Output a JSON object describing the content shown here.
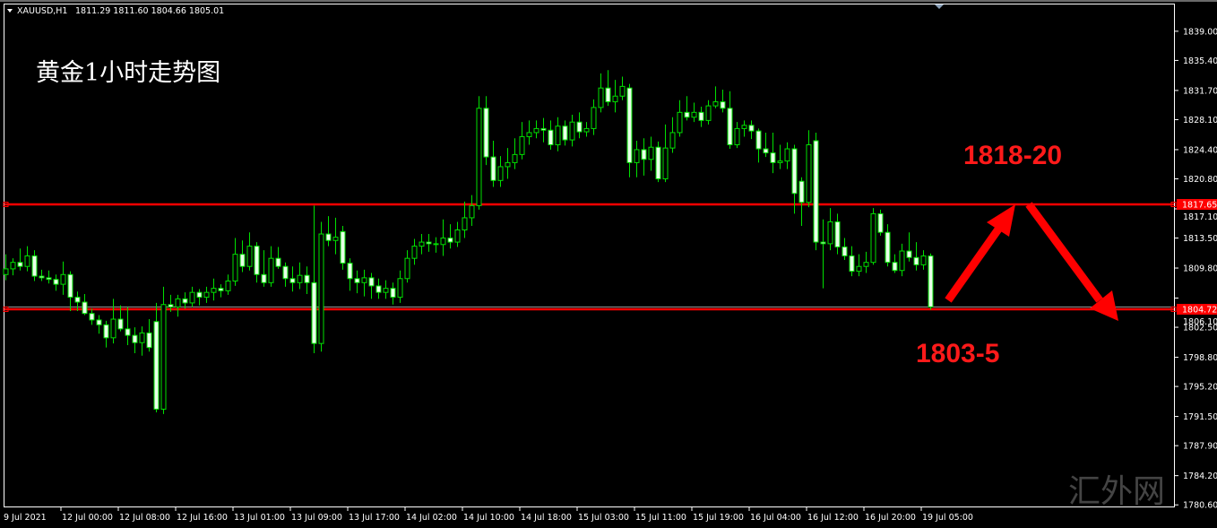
{
  "header": {
    "symbol": "XAUUSD,H1",
    "ohlc_readout": "1811.29 1811.60 1804.66 1805.01"
  },
  "overlay_title": "黄金1小时走势图",
  "watermark": "汇外网",
  "annotations": {
    "resistance_text": "1818-20",
    "support_text": "1803-5"
  },
  "colors": {
    "background": "#000000",
    "candle_outline": "#00e000",
    "bear_fill": "#e8ffe8",
    "level_line": "#ff0000",
    "arrow": "#ff0000"
  },
  "chart_data": {
    "type": "candlestick",
    "title": "",
    "ylim": [
      1780.4,
      1842.3
    ],
    "y_ticks": [
      "1839.00",
      "1835.40",
      "1831.70",
      "1828.10",
      "1824.40",
      "1820.80",
      "1817.10",
      "1813.50",
      "1809.80",
      "1806.10",
      "1802.50",
      "1798.80",
      "1795.20",
      "1791.50",
      "1787.90",
      "1784.20",
      "1780.60"
    ],
    "x_ticks": [
      "9 Jul 2021",
      "12 Jul 00:00",
      "12 Jul 08:00",
      "12 Jul 16:00",
      "13 Jul 01:00",
      "13 Jul 09:00",
      "13 Jul 17:00",
      "14 Jul 02:00",
      "14 Jul 10:00",
      "14 Jul 18:00",
      "15 Jul 03:00",
      "15 Jul 11:00",
      "15 Jul 19:00",
      "16 Jul 04:00",
      "16 Jul 12:00",
      "16 Jul 20:00",
      "19 Jul 05:00"
    ],
    "horizontal_levels": [
      {
        "price": 1817.65,
        "label": "1817.65"
      },
      {
        "price": 1804.72,
        "label": "1804.72"
      }
    ],
    "bid_line": 1805.01,
    "ohlc": [
      [
        1809.0,
        1811.5,
        1808.3,
        1809.7
      ],
      [
        1809.7,
        1811.0,
        1808.9,
        1810.5
      ],
      [
        1810.5,
        1812.2,
        1809.5,
        1810.0
      ],
      [
        1810.0,
        1812.5,
        1809.4,
        1811.3
      ],
      [
        1811.3,
        1812.0,
        1808.2,
        1808.8
      ],
      [
        1808.8,
        1809.6,
        1808.2,
        1808.6
      ],
      [
        1808.6,
        1809.5,
        1807.9,
        1808.4
      ],
      [
        1808.4,
        1809.0,
        1807.0,
        1807.8
      ],
      [
        1807.8,
        1810.6,
        1806.5,
        1809.0
      ],
      [
        1809.0,
        1809.4,
        1804.5,
        1806.2
      ],
      [
        1806.2,
        1806.9,
        1804.5,
        1805.6
      ],
      [
        1805.6,
        1806.6,
        1804.0,
        1804.2
      ],
      [
        1804.2,
        1804.8,
        1802.8,
        1803.4
      ],
      [
        1803.4,
        1804.0,
        1801.7,
        1802.8
      ],
      [
        1802.8,
        1803.3,
        1800.0,
        1801.2
      ],
      [
        1801.2,
        1806.0,
        1800.5,
        1803.5
      ],
      [
        1803.5,
        1805.2,
        1802.0,
        1802.3
      ],
      [
        1802.3,
        1805.0,
        1800.3,
        1801.5
      ],
      [
        1801.5,
        1802.5,
        1799.3,
        1800.6
      ],
      [
        1800.6,
        1802.6,
        1799.0,
        1801.8
      ],
      [
        1801.8,
        1803.5,
        1799.5,
        1800.0
      ],
      [
        1803.2,
        1805.5,
        1792.0,
        1792.4
      ],
      [
        1792.4,
        1807.5,
        1791.8,
        1805.3
      ],
      [
        1805.3,
        1806.5,
        1804.4,
        1805.0
      ],
      [
        1805.0,
        1806.5,
        1803.8,
        1806.0
      ],
      [
        1806.0,
        1806.8,
        1804.8,
        1805.5
      ],
      [
        1805.5,
        1807.5,
        1805.0,
        1806.8
      ],
      [
        1806.8,
        1807.2,
        1805.2,
        1806.2
      ],
      [
        1806.2,
        1807.5,
        1805.5,
        1806.8
      ],
      [
        1806.8,
        1808.5,
        1805.8,
        1807.3
      ],
      [
        1807.3,
        1807.8,
        1806.2,
        1807.0
      ],
      [
        1807.0,
        1809.0,
        1806.5,
        1808.2
      ],
      [
        1808.2,
        1813.5,
        1807.6,
        1811.5
      ],
      [
        1811.5,
        1813.2,
        1809.3,
        1810.0
      ],
      [
        1810.0,
        1814.2,
        1809.5,
        1812.5
      ],
      [
        1812.5,
        1813.0,
        1808.0,
        1809.0
      ],
      [
        1809.0,
        1812.0,
        1807.5,
        1808.0
      ],
      [
        1808.0,
        1812.5,
        1807.5,
        1811.0
      ],
      [
        1811.0,
        1812.4,
        1809.7,
        1810.0
      ],
      [
        1810.0,
        1810.5,
        1807.5,
        1808.5
      ],
      [
        1808.5,
        1810.0,
        1806.9,
        1808.0
      ],
      [
        1808.0,
        1810.5,
        1807.2,
        1808.9
      ],
      [
        1808.9,
        1810.0,
        1806.6,
        1808.0
      ],
      [
        1808.0,
        1817.5,
        1799.3,
        1800.5
      ],
      [
        1800.5,
        1815.5,
        1799.5,
        1814.0
      ],
      [
        1814.0,
        1816.2,
        1812.5,
        1813.2
      ],
      [
        1813.2,
        1816.0,
        1811.5,
        1813.6
      ],
      [
        1814.3,
        1815.0,
        1809.6,
        1810.4
      ],
      [
        1810.4,
        1811.0,
        1807.0,
        1808.5
      ],
      [
        1808.5,
        1809.5,
        1806.7,
        1808.0
      ],
      [
        1808.0,
        1809.6,
        1806.3,
        1808.6
      ],
      [
        1808.6,
        1809.2,
        1806.0,
        1807.6
      ],
      [
        1807.6,
        1808.5,
        1806.0,
        1806.8
      ],
      [
        1806.8,
        1808.3,
        1806.0,
        1807.3
      ],
      [
        1807.3,
        1808.0,
        1805.3,
        1806.2
      ],
      [
        1806.2,
        1809.5,
        1805.5,
        1808.5
      ],
      [
        1808.5,
        1812.0,
        1808.0,
        1811.0
      ],
      [
        1811.0,
        1813.4,
        1810.2,
        1812.5
      ],
      [
        1812.5,
        1814.0,
        1811.5,
        1813.0
      ],
      [
        1813.0,
        1814.0,
        1811.8,
        1812.8
      ],
      [
        1812.8,
        1813.6,
        1811.7,
        1812.7
      ],
      [
        1812.7,
        1815.8,
        1811.3,
        1813.5
      ],
      [
        1813.5,
        1815.2,
        1812.2,
        1813.0
      ],
      [
        1813.0,
        1815.5,
        1812.4,
        1814.5
      ],
      [
        1814.5,
        1818.0,
        1813.5,
        1816.0
      ],
      [
        1816.0,
        1818.8,
        1815.0,
        1817.5
      ],
      [
        1817.5,
        1831.0,
        1817.0,
        1829.5
      ],
      [
        1829.5,
        1831.0,
        1822.5,
        1823.5
      ],
      [
        1823.5,
        1825.5,
        1819.8,
        1820.6
      ],
      [
        1820.6,
        1823.6,
        1819.8,
        1822.3
      ],
      [
        1822.3,
        1824.6,
        1820.8,
        1822.8
      ],
      [
        1822.8,
        1825.8,
        1822.0,
        1823.8
      ],
      [
        1823.8,
        1827.8,
        1823.2,
        1826.0
      ],
      [
        1826.0,
        1828.0,
        1825.0,
        1826.5
      ],
      [
        1826.5,
        1828.0,
        1825.8,
        1827.0
      ],
      [
        1827.0,
        1828.3,
        1825.3,
        1826.8
      ],
      [
        1826.8,
        1828.0,
        1824.4,
        1825.0
      ],
      [
        1825.0,
        1828.4,
        1824.2,
        1827.3
      ],
      [
        1827.3,
        1828.0,
        1824.9,
        1825.6
      ],
      [
        1825.6,
        1828.7,
        1824.8,
        1827.8
      ],
      [
        1827.8,
        1829.0,
        1825.8,
        1826.6
      ],
      [
        1826.6,
        1827.8,
        1826.0,
        1827.0
      ],
      [
        1827.0,
        1830.6,
        1826.2,
        1829.6
      ],
      [
        1829.6,
        1833.8,
        1829.0,
        1832.0
      ],
      [
        1832.0,
        1834.2,
        1829.8,
        1830.3
      ],
      [
        1830.3,
        1833.0,
        1829.0,
        1831.0
      ],
      [
        1831.0,
        1833.4,
        1830.5,
        1832.2
      ],
      [
        1832.0,
        1832.5,
        1821.0,
        1822.8
      ],
      [
        1822.8,
        1825.5,
        1821.0,
        1824.4
      ],
      [
        1824.4,
        1825.8,
        1821.2,
        1823.2
      ],
      [
        1823.2,
        1826.0,
        1821.8,
        1824.7
      ],
      [
        1824.7,
        1825.4,
        1820.4,
        1820.8
      ],
      [
        1820.8,
        1827.5,
        1820.4,
        1824.6
      ],
      [
        1824.6,
        1828.4,
        1824.0,
        1826.5
      ],
      [
        1826.5,
        1830.5,
        1826.0,
        1829.0
      ],
      [
        1829.0,
        1831.0,
        1828.0,
        1828.4
      ],
      [
        1828.4,
        1830.2,
        1827.8,
        1829.0
      ],
      [
        1829.0,
        1829.7,
        1827.2,
        1828.0
      ],
      [
        1828.0,
        1830.5,
        1827.5,
        1829.8
      ],
      [
        1829.8,
        1832.2,
        1829.5,
        1830.3
      ],
      [
        1830.3,
        1831.8,
        1829.0,
        1829.5
      ],
      [
        1829.5,
        1831.6,
        1824.5,
        1825.0
      ],
      [
        1825.0,
        1827.8,
        1824.6,
        1827.0
      ],
      [
        1827.0,
        1828.0,
        1826.0,
        1827.4
      ],
      [
        1827.4,
        1828.0,
        1825.7,
        1826.7
      ],
      [
        1826.7,
        1827.0,
        1822.8,
        1824.5
      ],
      [
        1824.5,
        1826.5,
        1823.5,
        1824.0
      ],
      [
        1824.0,
        1826.5,
        1821.5,
        1822.8
      ],
      [
        1822.8,
        1825.0,
        1822.0,
        1823.0
      ],
      [
        1823.0,
        1825.3,
        1822.0,
        1824.5
      ],
      [
        1824.5,
        1825.0,
        1816.5,
        1819.0
      ],
      [
        1820.5,
        1821.0,
        1815.0,
        1817.9
      ],
      [
        1817.9,
        1826.8,
        1817.3,
        1825.0
      ],
      [
        1825.5,
        1826.5,
        1812.0,
        1813.0
      ],
      [
        1813.0,
        1815.8,
        1807.3,
        1812.8
      ],
      [
        1812.8,
        1817.2,
        1812.0,
        1815.5
      ],
      [
        1815.5,
        1816.5,
        1811.5,
        1812.4
      ],
      [
        1812.4,
        1813.5,
        1810.8,
        1811.3
      ],
      [
        1811.3,
        1812.5,
        1808.8,
        1809.4
      ],
      [
        1809.4,
        1811.5,
        1808.8,
        1810.0
      ],
      [
        1810.0,
        1811.8,
        1809.2,
        1810.5
      ],
      [
        1810.5,
        1817.2,
        1810.2,
        1816.5
      ],
      [
        1816.5,
        1817.0,
        1813.8,
        1814.2
      ],
      [
        1814.2,
        1815.2,
        1810.0,
        1810.5
      ],
      [
        1810.5,
        1811.5,
        1809.2,
        1809.5
      ],
      [
        1809.5,
        1812.8,
        1808.8,
        1811.9
      ],
      [
        1811.9,
        1814.2,
        1810.6,
        1811.1
      ],
      [
        1811.1,
        1813.0,
        1809.5,
        1810.2
      ],
      [
        1810.2,
        1812.0,
        1809.6,
        1811.29
      ],
      [
        1811.29,
        1811.6,
        1804.66,
        1805.01
      ]
    ]
  }
}
